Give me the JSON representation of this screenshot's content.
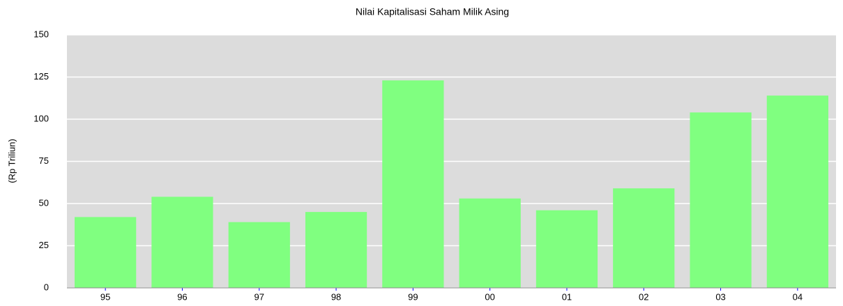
{
  "chart_data": {
    "type": "bar",
    "title": "Nilai Kapitalisasi Saham Milik Asing",
    "y_label": "(Rp Triliun)",
    "categories": [
      "95",
      "96",
      "97",
      "98",
      "99",
      "00",
      "01",
      "02",
      "03",
      "04"
    ],
    "values": [
      42,
      54,
      39,
      45,
      123,
      53,
      46,
      59,
      104,
      114
    ],
    "color": "#80ff80",
    "ylim": [
      0,
      150
    ],
    "yticks": [
      0,
      25,
      50,
      75,
      100,
      125,
      150
    ],
    "grid": true
  }
}
